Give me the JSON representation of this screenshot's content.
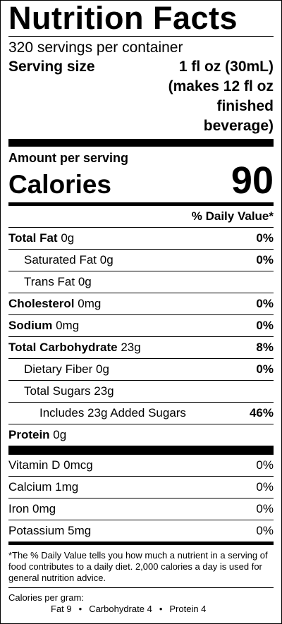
{
  "title": "Nutrition Facts",
  "servings": "320 servings per container",
  "serving_size": {
    "label": "Serving size",
    "lines": [
      "1 fl oz (30mL)",
      "(makes 12 fl oz",
      "finished",
      "beverage)"
    ]
  },
  "amount_per_serving": "Amount per serving",
  "calories": {
    "label": "Calories",
    "value": 90
  },
  "daily_value_header": "% Daily Value*",
  "nutrients": [
    {
      "name": "Total Fat",
      "amount": "0g",
      "dv": "0%"
    },
    {
      "name": "Saturated Fat",
      "amount": "0g",
      "dv": "0%"
    },
    {
      "name": "Trans Fat",
      "amount": "0g"
    },
    {
      "name": "Cholesterol",
      "amount": "0mg",
      "dv": "0%"
    },
    {
      "name": "Sodium",
      "amount": "0mg",
      "dv": "0%"
    },
    {
      "name": "Total Carbohydrate",
      "amount": "23g",
      "dv": "8%"
    },
    {
      "name": "Dietary Fiber",
      "amount": "0g",
      "dv": "0%"
    },
    {
      "name": "Total Sugars",
      "amount": "23g"
    },
    {
      "name": "Includes 23g Added Sugars",
      "dv": "46%"
    },
    {
      "name": "Protein",
      "amount": "0g"
    }
  ],
  "vitamins": [
    {
      "name": "Vitamin D",
      "amount": "0mcg",
      "dv": "0%"
    },
    {
      "name": "Calcium",
      "amount": "1mg",
      "dv": "0%"
    },
    {
      "name": "Iron",
      "amount": "0mg",
      "dv": "0%"
    },
    {
      "name": "Potassium",
      "amount": "5mg",
      "dv": "0%"
    }
  ],
  "footnote": "*The % Daily Value tells you how much a nutrient in a serving of food contributes to a daily diet. 2,000 calories a day is used for general nutrition advice.",
  "calories_per_gram": {
    "label": "Calories per gram:",
    "items": [
      "Fat 9",
      "Carbohydrate 4",
      "Protein 4"
    ]
  }
}
